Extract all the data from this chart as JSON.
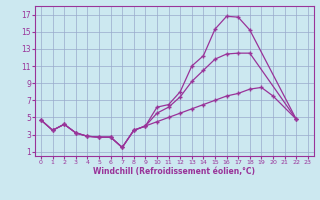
{
  "xlabel": "Windchill (Refroidissement éolien,°C)",
  "bg_color": "#cce8f0",
  "line_color": "#993399",
  "grid_color": "#99aacc",
  "x_ticks": [
    0,
    1,
    2,
    3,
    4,
    5,
    6,
    7,
    8,
    9,
    10,
    11,
    12,
    13,
    14,
    15,
    16,
    17,
    18,
    19,
    20,
    21,
    22,
    23
  ],
  "y_ticks": [
    1,
    3,
    5,
    7,
    9,
    11,
    13,
    15,
    17
  ],
  "xlim": [
    -0.5,
    23.5
  ],
  "ylim": [
    0.5,
    18
  ],
  "line1_y": [
    4.7,
    3.5,
    4.2,
    3.2,
    2.8,
    2.7,
    2.7,
    1.5,
    3.5,
    4.0,
    6.2,
    6.5,
    8.0,
    11.0,
    12.2,
    15.3,
    16.8,
    16.7,
    15.2,
    null,
    null,
    null,
    4.8,
    null
  ],
  "line2_y": [
    4.7,
    3.5,
    4.2,
    3.2,
    2.8,
    2.7,
    2.7,
    1.5,
    3.5,
    4.0,
    5.5,
    6.2,
    7.4,
    9.2,
    10.5,
    11.8,
    12.4,
    12.5,
    12.5,
    null,
    null,
    null,
    4.8,
    null
  ],
  "line3_y": [
    4.7,
    3.5,
    4.2,
    3.2,
    2.8,
    2.7,
    2.7,
    1.5,
    3.5,
    4.0,
    4.5,
    5.0,
    5.5,
    6.0,
    6.5,
    7.0,
    7.5,
    7.8,
    8.3,
    8.5,
    7.5,
    null,
    4.8,
    null
  ]
}
